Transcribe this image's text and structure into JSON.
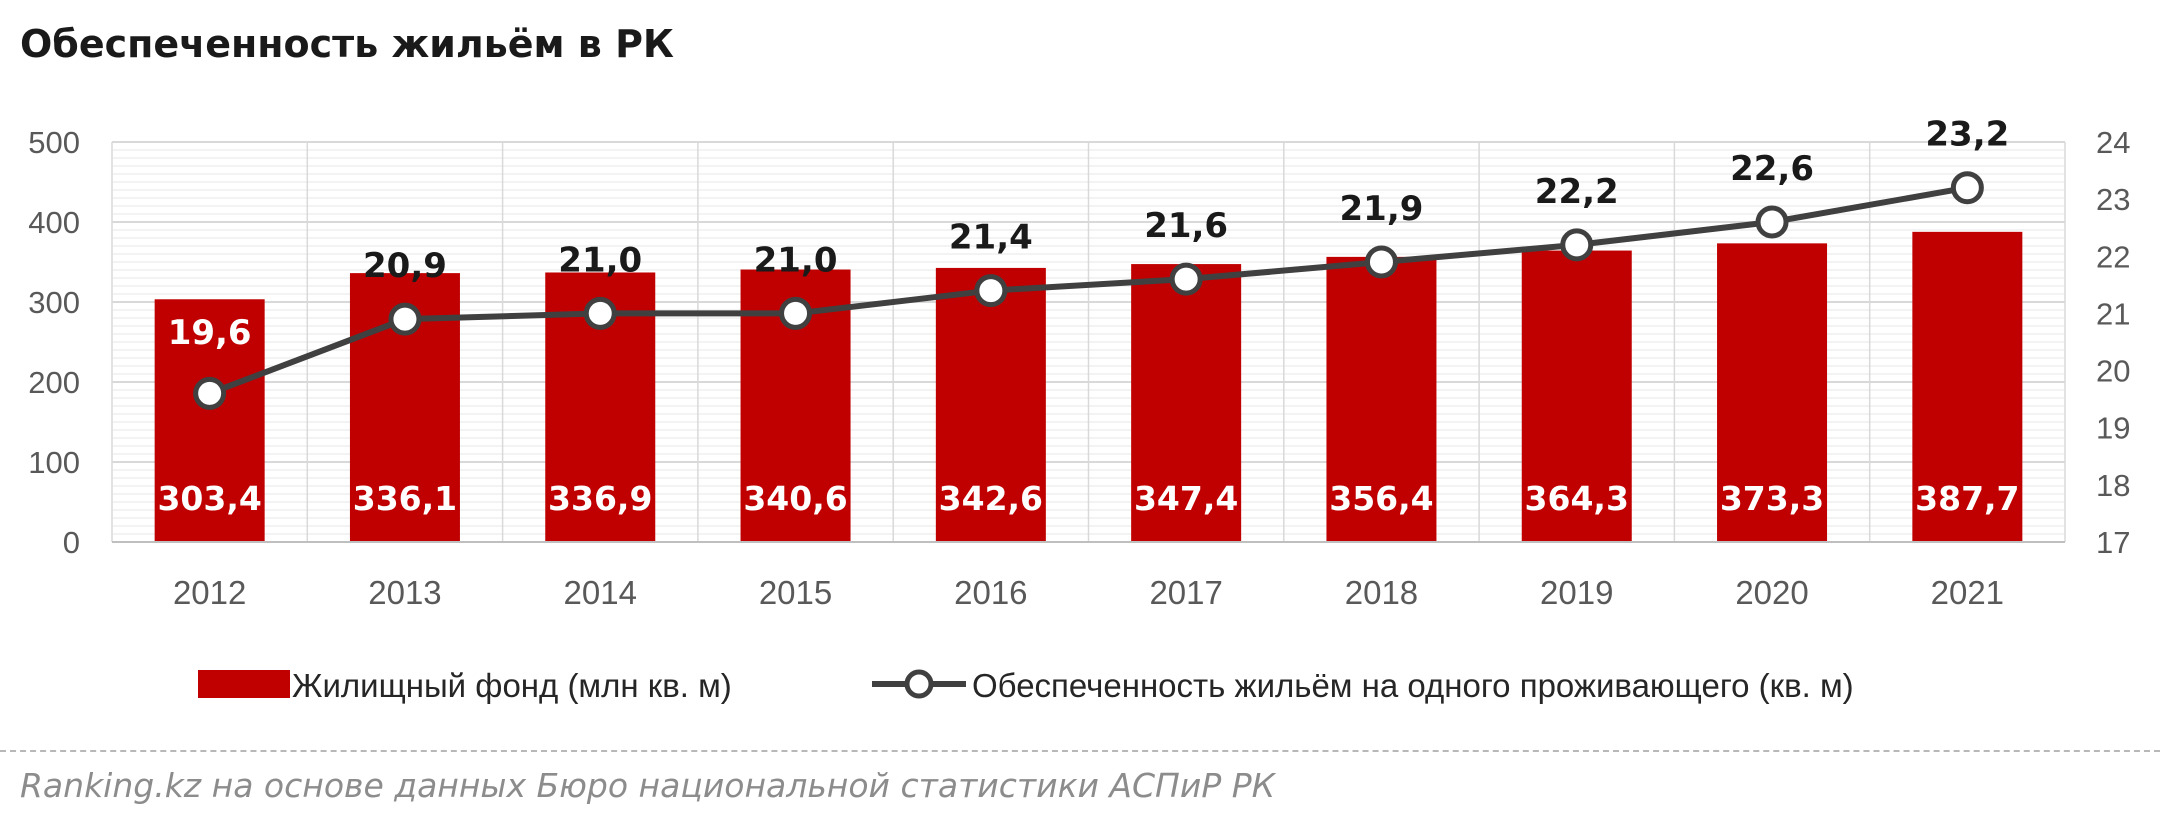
{
  "header": {
    "title": "Обеспеченность жильём в РК"
  },
  "footer": {
    "source": "Ranking.kz на основе данных Бюро национальной статистики АСПиР РК"
  },
  "colors": {
    "bar": "#c00000",
    "line": "#404040",
    "marker_fill": "#ffffff",
    "grid": "#d9d9d9",
    "axis_text": "#595959"
  },
  "chart_data": {
    "type": "bar",
    "categories": [
      "2012",
      "2013",
      "2014",
      "2015",
      "2016",
      "2017",
      "2018",
      "2019",
      "2020",
      "2021"
    ],
    "left_axis": {
      "range": [
        0,
        500
      ],
      "ticks": [
        "0",
        "100",
        "200",
        "300",
        "400",
        "500"
      ]
    },
    "right_axis": {
      "range": [
        17,
        24
      ],
      "ticks": [
        "17",
        "18",
        "19",
        "20",
        "21",
        "22",
        "23",
        "24"
      ]
    },
    "grid": true,
    "legend_position": "bottom",
    "series": [
      {
        "name": "Жилищный фонд (млн кв. м)",
        "type": "bar",
        "axis": "left",
        "values": [
          303.4,
          336.1,
          336.9,
          340.6,
          342.6,
          347.4,
          356.4,
          364.3,
          373.3,
          387.7
        ],
        "labels": [
          "303,4",
          "336,1",
          "336,9",
          "340,6",
          "342,6",
          "347,4",
          "356,4",
          "364,3",
          "373,3",
          "387,7"
        ]
      },
      {
        "name": "Обеспеченность жильём на одного проживающего (кв. м)",
        "type": "line",
        "axis": "right",
        "values": [
          19.6,
          20.9,
          21.0,
          21.0,
          21.4,
          21.6,
          21.9,
          22.2,
          22.6,
          23.2
        ],
        "labels": [
          "19,6",
          "20,9",
          "21,0",
          "21,0",
          "21,4",
          "21,6",
          "21,9",
          "22,2",
          "22,6",
          "23,2"
        ]
      }
    ]
  }
}
